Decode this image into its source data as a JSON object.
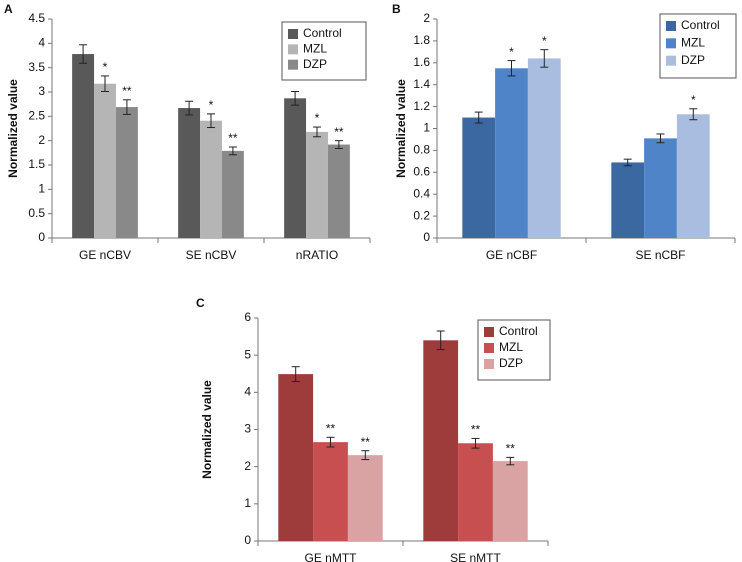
{
  "chart_data": [
    {
      "type": "bar",
      "panel_label": "A",
      "y_label": "Normalized value",
      "categories": [
        "GE nCBV",
        "SE nCBV",
        "nRATIO"
      ],
      "series": [
        {
          "name": "Control",
          "color": "#595959",
          "values": [
            3.78,
            2.67,
            2.87
          ],
          "errors": [
            0.19,
            0.14,
            0.14
          ],
          "annotations": [
            null,
            null,
            null
          ]
        },
        {
          "name": "MZL",
          "color": "#b5b5b5",
          "values": [
            3.17,
            2.41,
            2.18
          ],
          "errors": [
            0.16,
            0.14,
            0.1
          ],
          "annotations": [
            "*",
            "*",
            "*"
          ]
        },
        {
          "name": "DZP",
          "color": "#898989",
          "values": [
            2.69,
            1.79,
            1.92
          ],
          "errors": [
            0.15,
            0.08,
            0.08
          ],
          "annotations": [
            "**",
            "**",
            "**"
          ]
        }
      ],
      "ylim": [
        0,
        4.5
      ],
      "yticks": [
        0,
        0.5,
        1,
        1.5,
        2,
        2.5,
        3,
        3.5,
        4,
        4.5
      ],
      "legend": "upper right"
    },
    {
      "type": "bar",
      "panel_label": "B",
      "y_label": "Normalized value",
      "categories": [
        "GE nCBF",
        "SE nCBF"
      ],
      "series": [
        {
          "name": "Control",
          "color": "#3b68a1",
          "values": [
            1.1,
            0.69
          ],
          "errors": [
            0.05,
            0.03
          ],
          "annotations": [
            null,
            null
          ]
        },
        {
          "name": "MZL",
          "color": "#4f85c8",
          "values": [
            1.55,
            0.91
          ],
          "errors": [
            0.07,
            0.04
          ],
          "annotations": [
            "*",
            null
          ]
        },
        {
          "name": "DZP",
          "color": "#a9bde0",
          "values": [
            1.64,
            1.13
          ],
          "errors": [
            0.08,
            0.05
          ],
          "annotations": [
            "*",
            "*"
          ]
        }
      ],
      "ylim": [
        0,
        2
      ],
      "yticks": [
        0,
        0.2,
        0.4,
        0.6,
        0.8,
        1,
        1.2,
        1.4,
        1.6,
        1.8,
        2
      ],
      "legend": "upper right"
    },
    {
      "type": "bar",
      "panel_label": "C",
      "y_label": "Normalized value",
      "categories": [
        "GE nMTT",
        "SE nMTT"
      ],
      "series": [
        {
          "name": "Control",
          "color": "#9e3c3c",
          "values": [
            4.49,
            5.4
          ],
          "errors": [
            0.2,
            0.25
          ],
          "annotations": [
            null,
            null
          ]
        },
        {
          "name": "MZL",
          "color": "#c84f4f",
          "values": [
            2.66,
            2.63
          ],
          "errors": [
            0.13,
            0.13
          ],
          "annotations": [
            "**",
            "**"
          ]
        },
        {
          "name": "DZP",
          "color": "#d9a3a3",
          "values": [
            2.31,
            2.15
          ],
          "errors": [
            0.12,
            0.1
          ],
          "annotations": [
            "**",
            "**"
          ]
        }
      ],
      "ylim": [
        0,
        6
      ],
      "yticks": [
        0,
        1,
        2,
        3,
        4,
        5,
        6
      ],
      "legend": "upper right"
    }
  ]
}
